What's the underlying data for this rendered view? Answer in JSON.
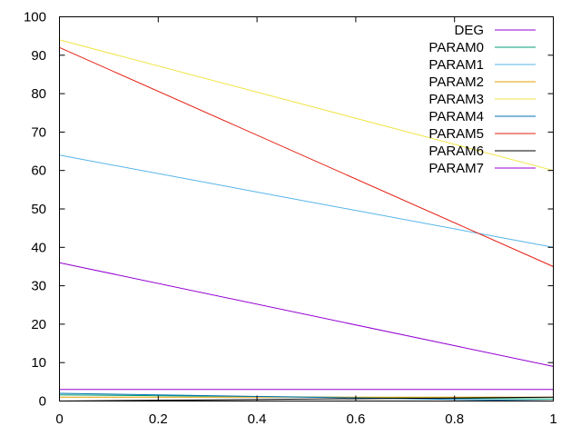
{
  "chart_data": {
    "type": "line",
    "title": "",
    "xlabel": "",
    "ylabel": "",
    "xlim": [
      0,
      1
    ],
    "ylim": [
      0,
      100
    ],
    "xticks": [
      0,
      0.2,
      0.4,
      0.6,
      0.8,
      1
    ],
    "xtick_labels": [
      "0",
      "0.2",
      "0.4",
      "0.6",
      "0.8",
      "1"
    ],
    "yticks": [
      0,
      10,
      20,
      30,
      40,
      50,
      60,
      70,
      80,
      90,
      100
    ],
    "ytick_labels": [
      "0",
      "10",
      "20",
      "30",
      "40",
      "50",
      "60",
      "70",
      "80",
      "90",
      "100"
    ],
    "grid": false,
    "legend_position": "top-right",
    "series": [
      {
        "name": "DEG",
        "color": "#9400d3",
        "x": [
          0,
          1
        ],
        "y": [
          3,
          3
        ]
      },
      {
        "name": "PARAM0",
        "color": "#009e73",
        "x": [
          0,
          1
        ],
        "y": [
          1.6,
          0.5
        ]
      },
      {
        "name": "PARAM1",
        "color": "#56b4e9",
        "x": [
          0,
          1
        ],
        "y": [
          64,
          40
        ]
      },
      {
        "name": "PARAM2",
        "color": "#e69f00",
        "x": [
          0,
          1
        ],
        "y": [
          1,
          1
        ]
      },
      {
        "name": "PARAM3",
        "color": "#f0e442",
        "x": [
          0,
          1
        ],
        "y": [
          94,
          60
        ]
      },
      {
        "name": "PARAM4",
        "color": "#0072b2",
        "x": [
          0,
          1
        ],
        "y": [
          2,
          0
        ]
      },
      {
        "name": "PARAM5",
        "color": "#e51e10",
        "x": [
          0,
          1
        ],
        "y": [
          92,
          35
        ]
      },
      {
        "name": "PARAM6",
        "color": "#000000",
        "x": [
          0,
          1
        ],
        "y": [
          0,
          1
        ]
      },
      {
        "name": "PARAM7",
        "color": "#9400d3",
        "x": [
          0,
          1
        ],
        "y": [
          36,
          9
        ]
      }
    ]
  }
}
